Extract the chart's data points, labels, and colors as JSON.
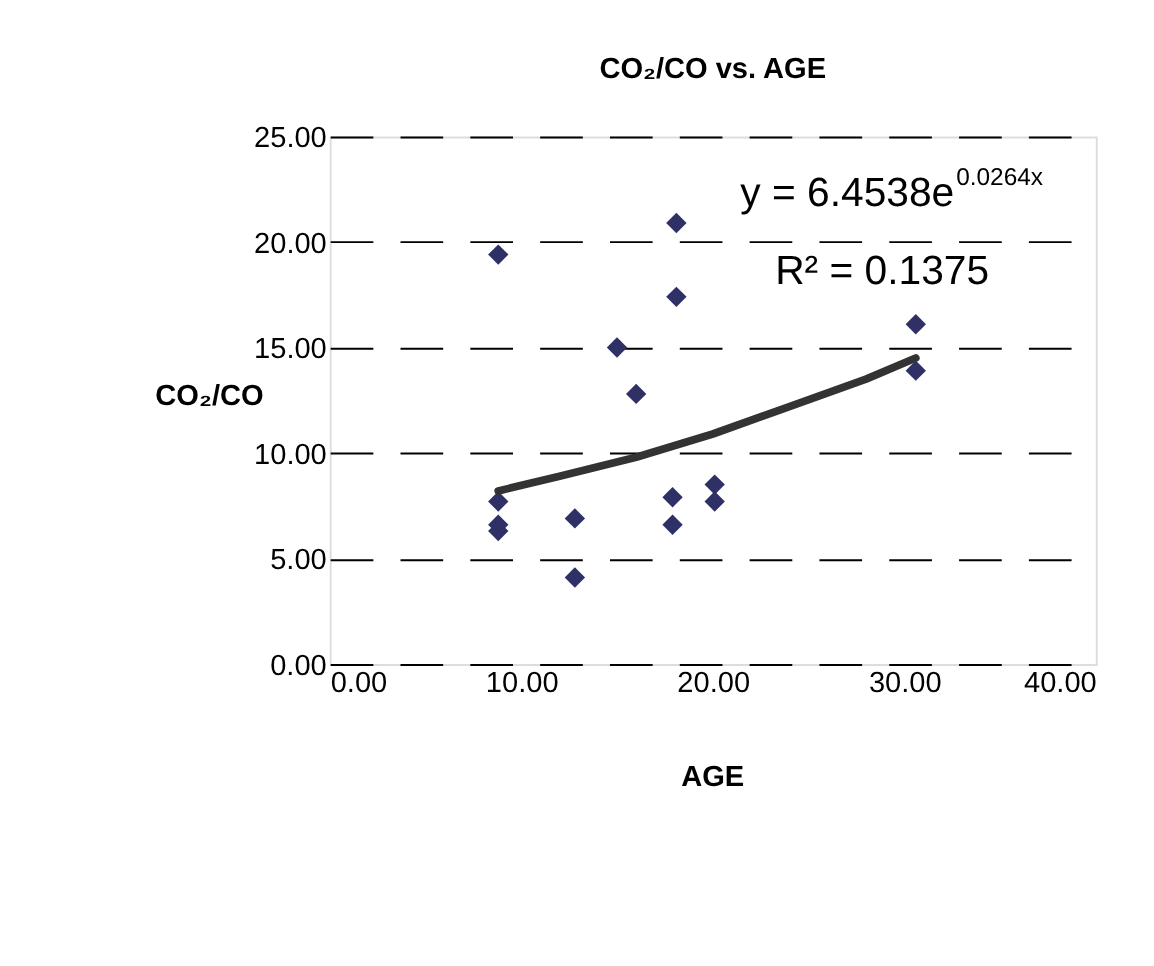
{
  "chart_data": {
    "type": "scatter",
    "title": "CO₂/CO vs. AGE",
    "xlabel": "AGE",
    "ylabel": "CO₂/CO",
    "series": [
      {
        "color": "#2e3066",
        "marker": "diamond",
        "x": [
          8.8,
          18.1,
          18.1,
          15.0,
          16.0,
          30.6,
          30.6,
          8.8,
          8.8,
          8.8,
          12.8,
          12.8,
          17.9,
          17.9,
          20.1,
          20.1
        ],
        "values": [
          19.4,
          20.9,
          17.4,
          15.0,
          12.8,
          16.1,
          13.9,
          7.7,
          6.6,
          6.3,
          6.9,
          4.1,
          7.9,
          6.6,
          8.5,
          7.7
        ]
      },
      {
        "type": "line",
        "color": "#333333",
        "marker": "none",
        "line_style": "solid",
        "x": [
          8.8,
          12,
          16,
          20,
          24,
          28,
          30.6
        ],
        "values": [
          8.2,
          8.9,
          9.8,
          10.9,
          12.2,
          13.5,
          14.5
        ]
      }
    ],
    "xlim": [
      0,
      40
    ],
    "ylim": [
      0,
      25
    ],
    "xticks": [
      {
        "value": 0,
        "label": "0.00"
      },
      {
        "value": 10,
        "label": "10.00"
      },
      {
        "value": 20,
        "label": "20.00"
      },
      {
        "value": 30,
        "label": "30.00"
      },
      {
        "value": 40,
        "label": "40.00"
      }
    ],
    "yticks": [
      {
        "value": 0,
        "label": "0.00"
      },
      {
        "value": 5,
        "label": "5.00"
      },
      {
        "value": 10,
        "label": "10.00"
      },
      {
        "value": 15,
        "label": "15.00"
      },
      {
        "value": 20,
        "label": "20.00"
      },
      {
        "value": 25,
        "label": "25.00"
      }
    ],
    "grid": "y",
    "annotations": [
      "y = 6.4538e$^{0.0264x}$",
      "R² = 0.1375"
    ]
  }
}
